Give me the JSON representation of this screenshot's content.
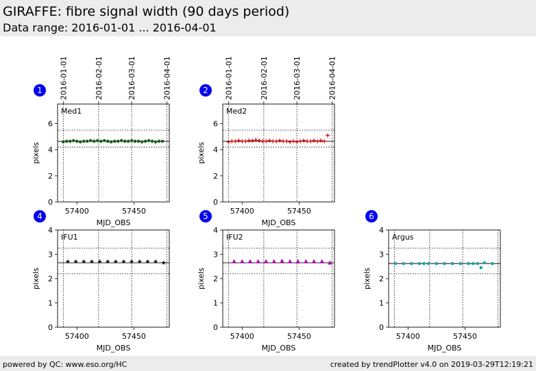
{
  "header": {
    "title": "GIRAFFE: fibre signal width (90 days period)",
    "subtitle": "Data range: 2016-01-01 ... 2016-04-01"
  },
  "footer": {
    "left": "powered by QC: www.eso.org/HC",
    "right": "created by trendPlotter v4.0 on 2019-03-29T12:19:21"
  },
  "chart_data": [
    {
      "type": "scatter",
      "number": "1",
      "label": "Med1",
      "xlabel": "MJD_OBS",
      "ylabel": "pixels",
      "xlim": [
        57383,
        57481
      ],
      "ylim": [
        0,
        7.5
      ],
      "yticks": [
        0,
        2,
        4,
        6
      ],
      "xticks": [
        57400,
        57450
      ],
      "date_ticks": [
        "2016-01-01",
        "2016-02-01",
        "2016-03-01",
        "2016-04-01"
      ],
      "date_tick_mjd": [
        57388,
        57419,
        57448,
        57479
      ],
      "median": 4.65,
      "limits": [
        4.2,
        5.5
      ],
      "marker": "circle",
      "color": "#1a5c1a",
      "x": [
        57388,
        57391,
        57394,
        57397,
        57400,
        57403,
        57406,
        57409,
        57412,
        57415,
        57418,
        57421,
        57424,
        57427,
        57430,
        57433,
        57436,
        57439,
        57442,
        57445,
        57448,
        57451,
        57454,
        57457,
        57460,
        57463,
        57466,
        57469,
        57472,
        57475
      ],
      "y": [
        4.6,
        4.65,
        4.65,
        4.7,
        4.65,
        4.6,
        4.65,
        4.65,
        4.7,
        4.65,
        4.7,
        4.65,
        4.7,
        4.65,
        4.6,
        4.65,
        4.65,
        4.7,
        4.65,
        4.65,
        4.7,
        4.65,
        4.65,
        4.6,
        4.65,
        4.7,
        4.65,
        4.6,
        4.65,
        4.65
      ]
    },
    {
      "type": "scatter",
      "number": "2",
      "label": "Med2",
      "xlabel": "MJD_OBS",
      "ylabel": "pixels",
      "xlim": [
        57383,
        57481
      ],
      "ylim": [
        0,
        7.5
      ],
      "yticks": [
        0,
        2,
        4,
        6
      ],
      "xticks": [
        57400,
        57450
      ],
      "date_ticks": [
        "2016-01-01",
        "2016-02-01",
        "2016-03-01",
        "2016-04-01"
      ],
      "date_tick_mjd": [
        57388,
        57419,
        57448,
        57479
      ],
      "median": 4.65,
      "limits": [
        4.2,
        5.5
      ],
      "marker": "plus",
      "color": "#cc0000",
      "x": [
        57388,
        57391,
        57394,
        57397,
        57400,
        57403,
        57406,
        57409,
        57412,
        57415,
        57418,
        57421,
        57424,
        57427,
        57430,
        57433,
        57436,
        57439,
        57442,
        57445,
        57448,
        57451,
        57454,
        57457,
        57460,
        57463,
        57466,
        57469,
        57472,
        57475
      ],
      "y": [
        4.6,
        4.65,
        4.65,
        4.7,
        4.65,
        4.65,
        4.7,
        4.7,
        4.75,
        4.7,
        4.65,
        4.65,
        4.7,
        4.65,
        4.65,
        4.7,
        4.65,
        4.65,
        4.6,
        4.65,
        4.6,
        4.65,
        4.7,
        4.65,
        4.65,
        4.7,
        4.65,
        4.7,
        4.65,
        5.1
      ]
    },
    {
      "type": "scatter",
      "number": "4",
      "label": "IFU1",
      "xlabel": "MJD_OBS",
      "ylabel": "pixels",
      "xlim": [
        57383,
        57481
      ],
      "ylim": [
        0,
        4
      ],
      "yticks": [
        0,
        1,
        2,
        3,
        4
      ],
      "xticks": [
        57400,
        57450
      ],
      "date_tick_mjd": [
        57388,
        57419,
        57448,
        57479
      ],
      "median": 2.65,
      "limits": [
        2.2,
        3.25
      ],
      "marker": "star",
      "color": "#111111",
      "x": [
        57392,
        57399,
        57406,
        57413,
        57420,
        57427,
        57434,
        57441,
        57448,
        57455,
        57462,
        57469,
        57476
      ],
      "y": [
        2.7,
        2.7,
        2.7,
        2.7,
        2.7,
        2.7,
        2.7,
        2.7,
        2.7,
        2.7,
        2.7,
        2.7,
        2.65
      ]
    },
    {
      "type": "scatter",
      "number": "5",
      "label": "IFU2",
      "xlabel": "MJD_OBS",
      "ylabel": "pixels",
      "xlim": [
        57383,
        57481
      ],
      "ylim": [
        0,
        4
      ],
      "yticks": [
        0,
        1,
        2,
        3,
        4
      ],
      "xticks": [
        57400,
        57450
      ],
      "date_tick_mjd": [
        57388,
        57419,
        57448,
        57479
      ],
      "median": 2.65,
      "limits": [
        2.2,
        3.25
      ],
      "marker": "triangle",
      "color": "#aa00aa",
      "x": [
        57393,
        57400,
        57407,
        57414,
        57421,
        57428,
        57435,
        57442,
        57449,
        57456,
        57463,
        57470,
        57477
      ],
      "y": [
        2.7,
        2.7,
        2.7,
        2.7,
        2.7,
        2.7,
        2.72,
        2.7,
        2.7,
        2.7,
        2.7,
        2.7,
        2.65
      ]
    },
    {
      "type": "scatter",
      "number": "6",
      "label": "Argus",
      "xlabel": "MJD_OBS",
      "ylabel": "pixels",
      "xlim": [
        57383,
        57481
      ],
      "ylim": [
        0,
        4
      ],
      "yticks": [
        0,
        1,
        2,
        3,
        4
      ],
      "xticks": [
        57400,
        57450
      ],
      "date_tick_mjd": [
        57388,
        57419,
        57448,
        57479
      ],
      "median": 2.62,
      "limits": [
        2.2,
        3.25
      ],
      "marker": "circle",
      "color": "#1ba3a3",
      "x": [
        57389,
        57396,
        57403,
        57410,
        57414,
        57418,
        57425,
        57432,
        57439,
        57446,
        57453,
        57457,
        57461,
        57464,
        57467,
        57474
      ],
      "y": [
        2.62,
        2.62,
        2.62,
        2.62,
        2.62,
        2.62,
        2.62,
        2.62,
        2.62,
        2.62,
        2.62,
        2.62,
        2.62,
        2.45,
        2.65,
        2.62
      ]
    }
  ]
}
